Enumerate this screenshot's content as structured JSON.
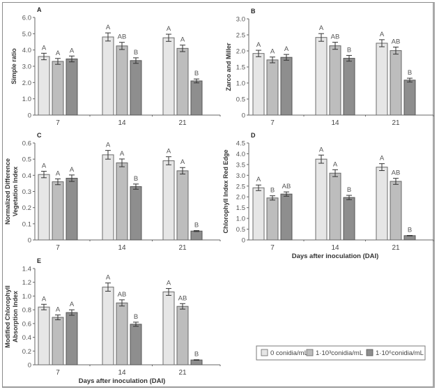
{
  "figure": {
    "legend": [
      {
        "label": "0 conidia/mL",
        "color": "#e6e6e6"
      },
      {
        "label": "1·10³conidia/mL",
        "color": "#bdbdbd"
      },
      {
        "label": "1·10⁶conidia/mL",
        "color": "#8e8e8e"
      }
    ]
  },
  "chart_data": [
    {
      "type": "bar",
      "panel": "A",
      "title": "",
      "xlabel": "",
      "ylabel": "Simple ratio",
      "categories": [
        "7",
        "14",
        "21"
      ],
      "ylim": [
        0,
        6.0
      ],
      "yticks": [
        "0",
        "1.0",
        "2.0",
        "3.0",
        "4.0",
        "5.0",
        "6.0"
      ],
      "ytick_values": [
        0,
        1,
        2,
        3,
        4,
        5,
        6
      ],
      "series": [
        {
          "name": "0 conidia/mL",
          "values": [
            3.6,
            4.8,
            4.75
          ],
          "errors": [
            0.2,
            0.25,
            0.22
          ],
          "letters": [
            "A",
            "A",
            "A"
          ]
        },
        {
          "name": "1·10³conidia/mL",
          "values": [
            3.3,
            4.25,
            4.1
          ],
          "errors": [
            0.18,
            0.22,
            0.2
          ],
          "letters": [
            "A",
            "AB",
            "A"
          ]
        },
        {
          "name": "1·10⁶conidia/mL",
          "values": [
            3.45,
            3.35,
            2.1
          ],
          "errors": [
            0.18,
            0.17,
            0.12
          ],
          "letters": [
            "A",
            "B",
            "B"
          ]
        }
      ]
    },
    {
      "type": "bar",
      "panel": "B",
      "title": "",
      "xlabel": "",
      "ylabel": "Zarco and Miller",
      "categories": [
        "7",
        "14",
        "21"
      ],
      "ylim": [
        0,
        3.0
      ],
      "yticks": [
        "0",
        "0.5",
        "1.0",
        "1.5",
        "2.0",
        "2.5",
        "3.0"
      ],
      "ytick_values": [
        0,
        0.5,
        1.0,
        1.5,
        2.0,
        2.5,
        3.0
      ],
      "series": [
        {
          "name": "0 conidia/mL",
          "values": [
            1.92,
            2.42,
            2.24
          ],
          "errors": [
            0.1,
            0.12,
            0.11
          ],
          "letters": [
            "A",
            "A",
            "A"
          ]
        },
        {
          "name": "1·10³conidia/mL",
          "values": [
            1.72,
            2.16,
            2.01
          ],
          "errors": [
            0.09,
            0.11,
            0.11
          ],
          "letters": [
            "A",
            "AB",
            "AB"
          ]
        },
        {
          "name": "1·10⁶conidia/mL",
          "values": [
            1.8,
            1.77,
            1.09
          ],
          "errors": [
            0.09,
            0.09,
            0.06
          ],
          "letters": [
            "A",
            "B",
            "B"
          ]
        }
      ]
    },
    {
      "type": "bar",
      "panel": "C",
      "title": "",
      "xlabel": "",
      "ylabel": "Normalized Difference Vegetation Index",
      "ylabel_lines": [
        "Normalized Difference",
        "Vegetation Index"
      ],
      "categories": [
        "7",
        "14",
        "21"
      ],
      "ylim": [
        0,
        0.6
      ],
      "yticks": [
        "0",
        "0.1",
        "0.2",
        "0.3",
        "0.4",
        "0.5",
        "0.6"
      ],
      "ytick_values": [
        0,
        0.1,
        0.2,
        0.3,
        0.4,
        0.5,
        0.6
      ],
      "series": [
        {
          "name": "0 conidia/mL",
          "values": [
            0.405,
            0.527,
            0.49
          ],
          "errors": [
            0.02,
            0.027,
            0.025
          ],
          "letters": [
            "A",
            "A",
            "A"
          ]
        },
        {
          "name": "1·10³conidia/mL",
          "values": [
            0.36,
            0.477,
            0.428
          ],
          "errors": [
            0.018,
            0.024,
            0.02
          ],
          "letters": [
            "A",
            "A",
            "A"
          ]
        },
        {
          "name": "1·10⁶conidia/mL",
          "values": [
            0.382,
            0.33,
            0.055
          ],
          "errors": [
            0.02,
            0.016,
            0.003
          ],
          "letters": [
            "A",
            "B",
            "B"
          ]
        }
      ]
    },
    {
      "type": "bar",
      "panel": "D",
      "title": "",
      "xlabel": "Days after inoculation (DAI)",
      "ylabel": "Chlorophyll Index Red Edge",
      "categories": [
        "7",
        "14",
        "21"
      ],
      "ylim": [
        0,
        4.5
      ],
      "yticks": [
        "0",
        "0.5",
        "1.0",
        "1.5",
        "2.0",
        "2.5",
        "3.0",
        "3.5",
        "4.0",
        "4.5"
      ],
      "ytick_values": [
        0,
        0.5,
        1.0,
        1.5,
        2.0,
        2.5,
        3.0,
        3.5,
        4.0,
        4.5
      ],
      "series": [
        {
          "name": "0 conidia/mL",
          "values": [
            2.42,
            3.75,
            3.38
          ],
          "errors": [
            0.13,
            0.19,
            0.16
          ],
          "letters": [
            "A",
            "A",
            "A"
          ]
        },
        {
          "name": "1·10³conidia/mL",
          "values": [
            1.95,
            3.1,
            2.72
          ],
          "errors": [
            0.1,
            0.16,
            0.14
          ],
          "letters": [
            "B",
            "A",
            "AB"
          ]
        },
        {
          "name": "1·10⁶conidia/mL",
          "values": [
            2.13,
            1.97,
            0.2
          ],
          "errors": [
            0.1,
            0.1,
            0.01
          ],
          "letters": [
            "AB",
            "B",
            "B"
          ]
        }
      ]
    },
    {
      "type": "bar",
      "panel": "E",
      "title": "",
      "xlabel": "Days after inoculation (DAI)",
      "ylabel": "Modified Chlorophyll Absorption Index",
      "ylabel_lines": [
        "Modified Chlorophyll",
        "Absorption Index"
      ],
      "categories": [
        "7",
        "14",
        "21"
      ],
      "ylim": [
        0,
        1.4
      ],
      "yticks": [
        "0",
        "0.2",
        "0.4",
        "0.6",
        "0.8",
        "1.0",
        "1.2",
        "1.4"
      ],
      "ytick_values": [
        0,
        0.2,
        0.4,
        0.6,
        0.8,
        1.0,
        1.2,
        1.4
      ],
      "series": [
        {
          "name": "0 conidia/mL",
          "values": [
            0.84,
            1.13,
            1.06
          ],
          "errors": [
            0.04,
            0.06,
            0.05
          ],
          "letters": [
            "A",
            "A",
            "A"
          ]
        },
        {
          "name": "1·10³conidia/mL",
          "values": [
            0.69,
            0.9,
            0.85
          ],
          "errors": [
            0.035,
            0.045,
            0.04
          ],
          "letters": [
            "A",
            "AB",
            "AB"
          ]
        },
        {
          "name": "1·10⁶conidia/mL",
          "values": [
            0.76,
            0.59,
            0.07
          ],
          "errors": [
            0.04,
            0.03,
            0.004
          ],
          "letters": [
            "A",
            "B",
            "B"
          ]
        }
      ]
    }
  ]
}
